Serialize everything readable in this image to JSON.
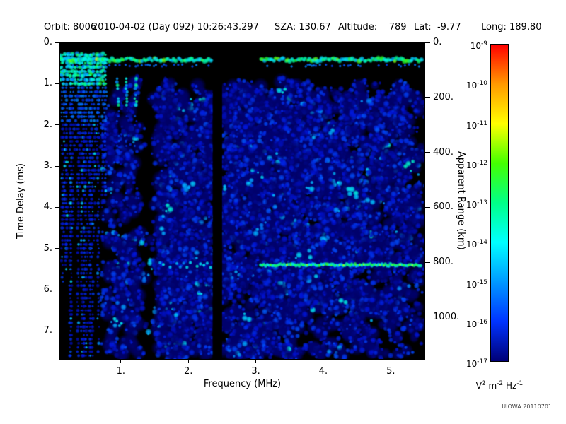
{
  "header": {
    "items": [
      "Orbit: 8006",
      "2010-04-02 (Day 092) 10:26:43.297",
      "SZA: 130.67",
      "Altitude:    789",
      "Lat:  -9.77",
      "Long: 189.80"
    ]
  },
  "footer": {
    "credit": "UIOWA 20110701"
  },
  "chart_data": {
    "type": "heatmap",
    "title": "",
    "xlabel": "Frequency (MHz)",
    "ylabel_left": "Time Delay (ms)",
    "ylabel_right": "Apparent Range (km)",
    "xlim": [
      0.1,
      5.5
    ],
    "ylim_left": [
      0,
      7.68
    ],
    "ylim_right": [
      0,
      1152
    ],
    "x_ticks": [
      "1.",
      "2.",
      "3.",
      "4.",
      "5."
    ],
    "x_tick_values": [
      1,
      2,
      3,
      4,
      5
    ],
    "y_ticks_left": [
      "0.",
      "1.",
      "2.",
      "3.",
      "4.",
      "5.",
      "6.",
      "7."
    ],
    "y_tick_values_left": [
      0,
      1,
      2,
      3,
      4,
      5,
      6,
      7
    ],
    "y_ticks_right": [
      "0.",
      "200.",
      "400.",
      "600.",
      "800.",
      "1000."
    ],
    "y_tick_values_right": [
      0,
      200,
      400,
      600,
      800,
      1000
    ],
    "background": "#000000",
    "colorbar": {
      "base": "10",
      "exponents": [
        -9,
        -10,
        -11,
        -12,
        -13,
        -14,
        -15,
        -16,
        -17
      ],
      "colors": [
        "#ff0000",
        "#ff9900",
        "#ffff00",
        "#44ff00",
        "#00ff88",
        "#00ffff",
        "#0099ff",
        "#0033ff",
        "#000077"
      ],
      "units_parts": [
        [
          "V",
          "2"
        ],
        [
          "m",
          "-2"
        ],
        [
          "Hz",
          "-1"
        ]
      ]
    },
    "features": {
      "seed": 20110701,
      "top_band": {
        "t_center": 0.42,
        "gap_f": [
          2.33,
          3.07
        ]
      },
      "echo_band": {
        "t_center": 5.4,
        "f_start": 1.58,
        "weak_f": [
          2.52,
          3.05
        ],
        "strong_f": [
          3.07,
          5.47
        ]
      },
      "dark_column_f": [
        2.36,
        2.5
      ],
      "quiet_column_f": [
        1.28,
        1.56
      ],
      "streaks": {
        "f_min": 0.115,
        "f_max": 0.8,
        "count": 24
      },
      "mid_streaks_f": [
        0.95,
        1.08,
        1.22
      ],
      "bright_block": {
        "f_range": [
          0.1,
          0.78
        ],
        "t_range": [
          0.28,
          1.0
        ]
      }
    }
  }
}
